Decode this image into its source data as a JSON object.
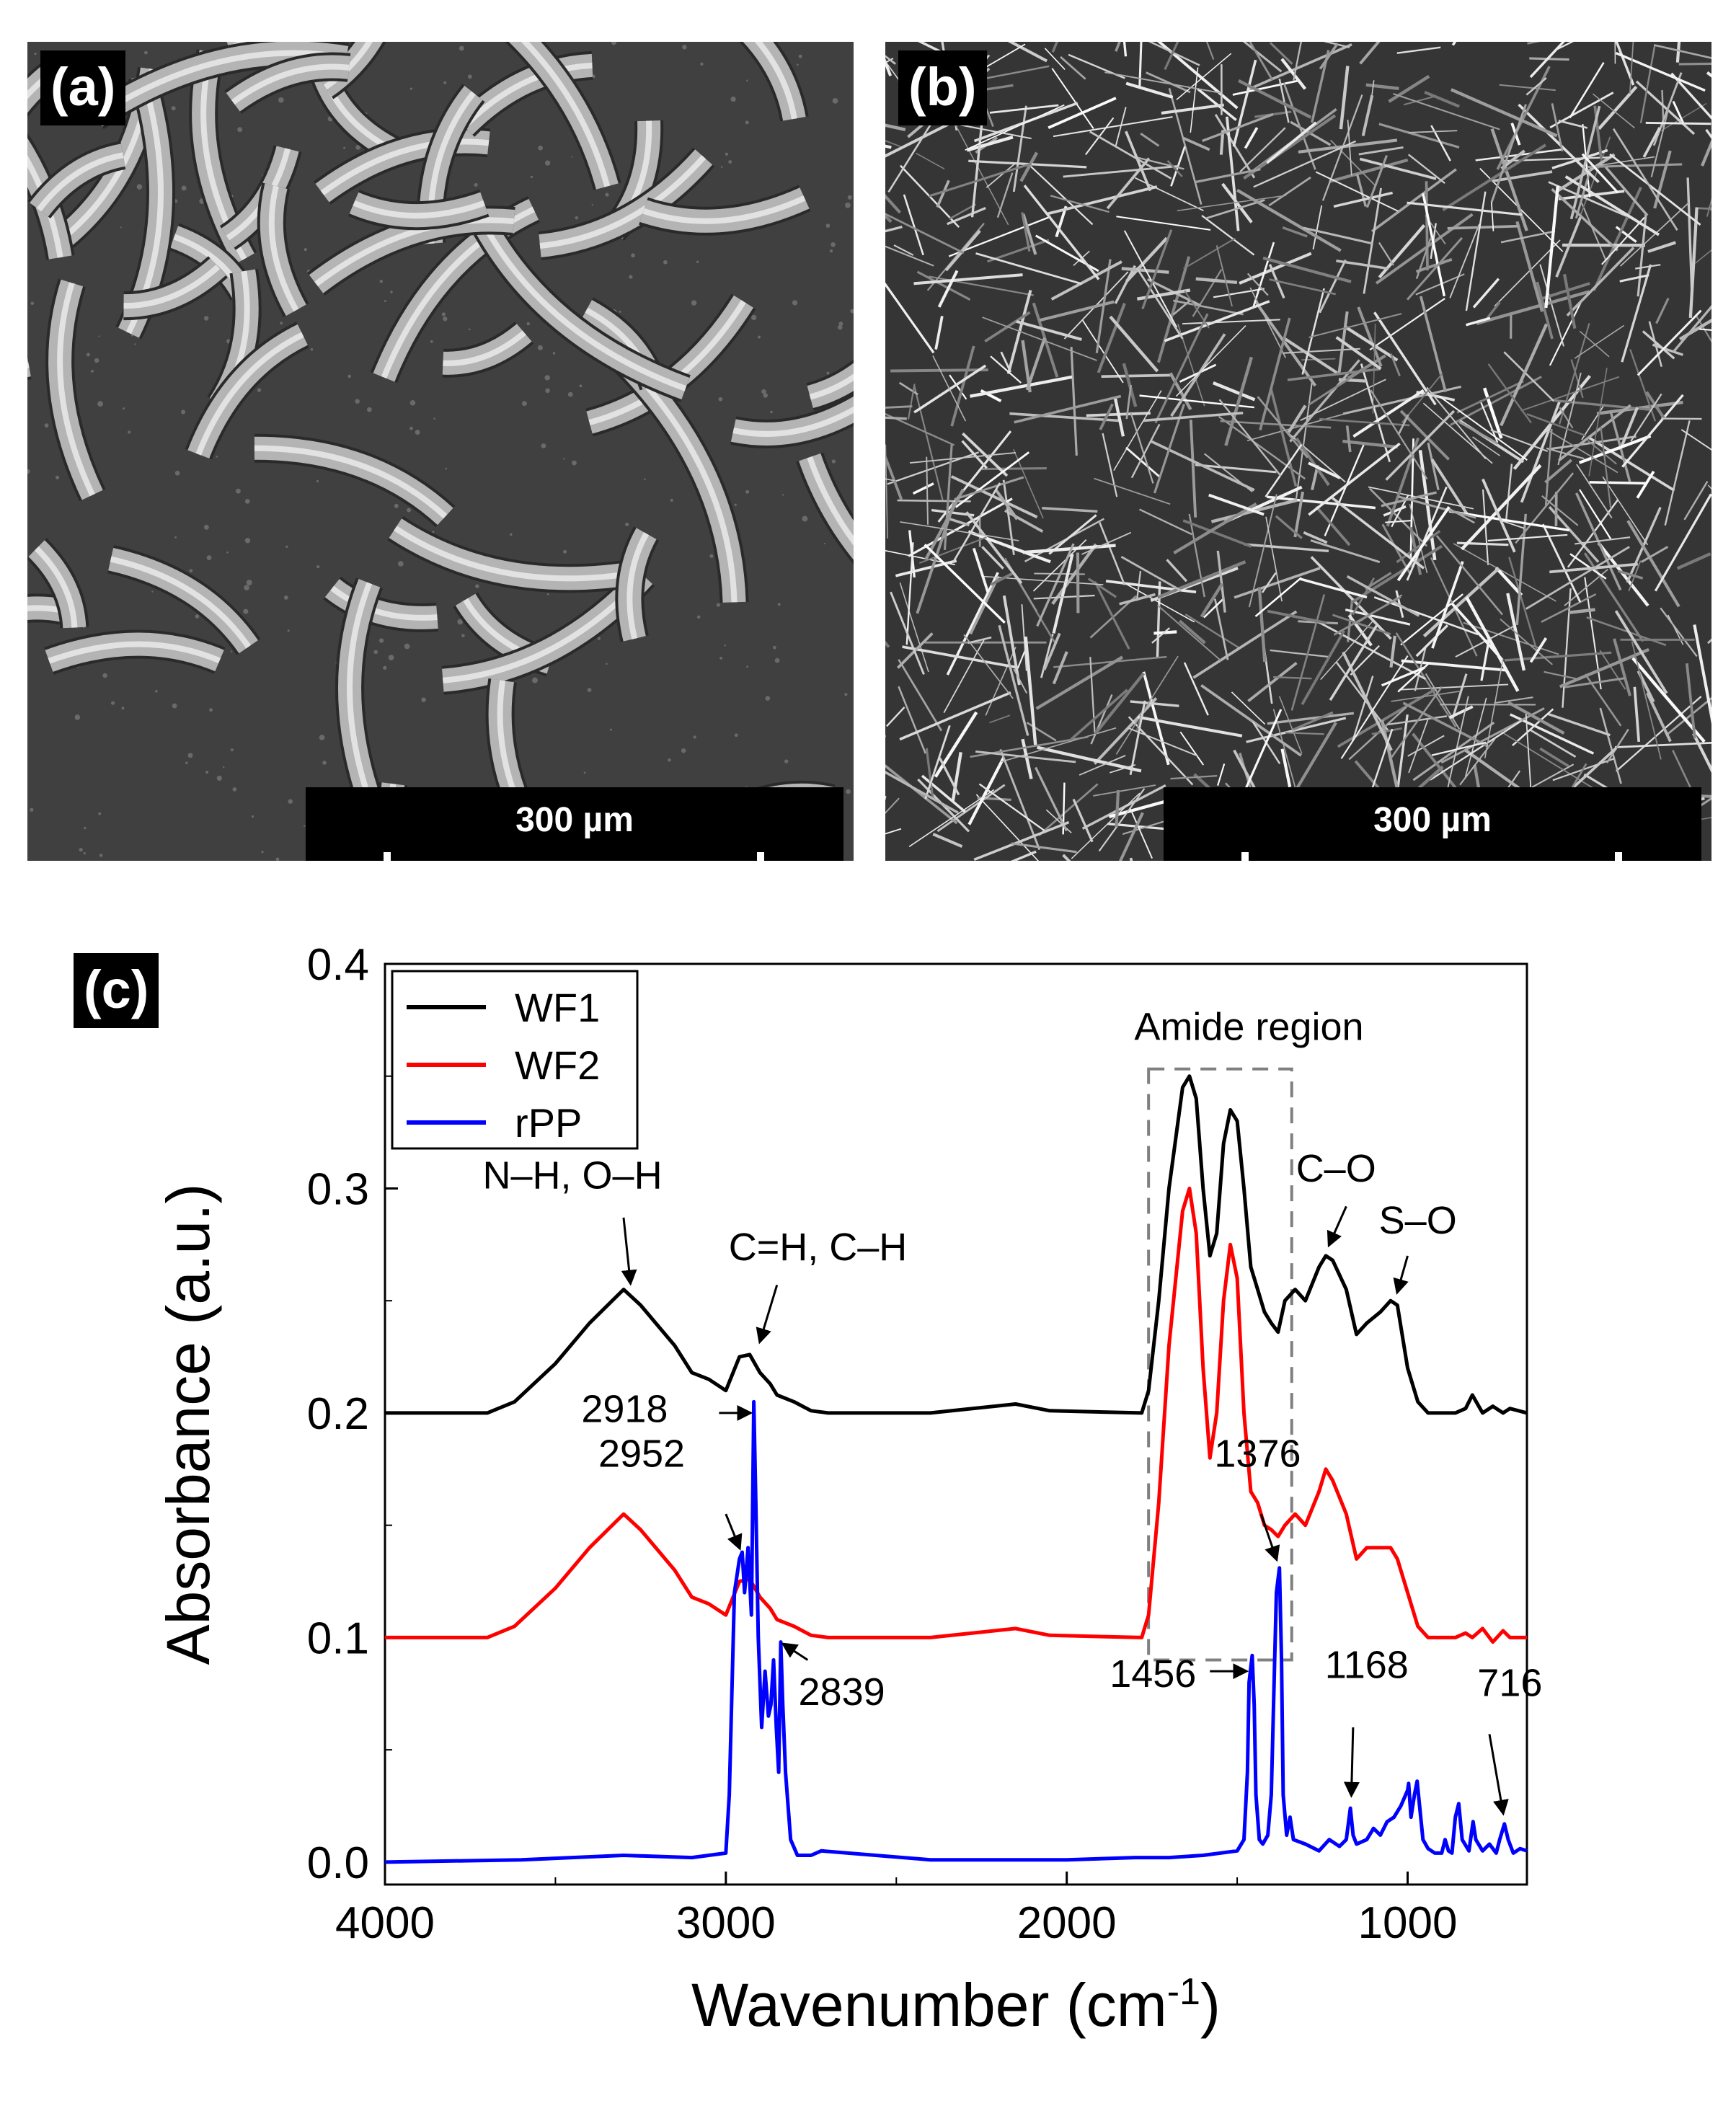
{
  "panels": {
    "a": {
      "label": "(a)",
      "scale_label": "300 µm"
    },
    "b": {
      "label": "(b)",
      "scale_label": "300 µm"
    },
    "c": {
      "label": "(c)"
    }
  },
  "chart_data": {
    "type": "line",
    "xlabel": "Wavenumber (cm",
    "xlabel_sup": "-1",
    "xlabel_close": ")",
    "ylabel": "Absorbance (a.u.)",
    "xlim": [
      4000,
      650
    ],
    "ylim": [
      -0.01,
      0.4
    ],
    "x_ticks": [
      4000,
      3000,
      2000,
      1000
    ],
    "y_ticks": [
      0.0,
      0.1,
      0.2,
      0.3,
      0.4
    ],
    "y_tick_labels": [
      "0.0",
      "0.1",
      "0.2",
      "0.3",
      "0.4"
    ],
    "legend_position": "top-left",
    "series": [
      {
        "name": "WF1",
        "color": "#000000",
        "x": [
          4000,
          3700,
          3620,
          3500,
          3400,
          3300,
          3250,
          3150,
          3100,
          3050,
          3000,
          2960,
          2930,
          2900,
          2870,
          2850,
          2800,
          2750,
          2700,
          2400,
          2150,
          2050,
          1780,
          1760,
          1730,
          1700,
          1660,
          1640,
          1620,
          1600,
          1580,
          1560,
          1540,
          1520,
          1500,
          1480,
          1460,
          1440,
          1420,
          1400,
          1380,
          1360,
          1330,
          1300,
          1260,
          1240,
          1220,
          1180,
          1150,
          1120,
          1080,
          1050,
          1030,
          1000,
          970,
          940,
          900,
          860,
          830,
          810,
          780,
          750,
          720,
          700,
          650
        ],
        "y": [
          0.2,
          0.2,
          0.205,
          0.222,
          0.24,
          0.255,
          0.248,
          0.23,
          0.218,
          0.215,
          0.21,
          0.225,
          0.226,
          0.218,
          0.213,
          0.208,
          0.205,
          0.201,
          0.2,
          0.2,
          0.204,
          0.201,
          0.2,
          0.21,
          0.25,
          0.3,
          0.345,
          0.35,
          0.34,
          0.3,
          0.27,
          0.28,
          0.32,
          0.335,
          0.33,
          0.3,
          0.265,
          0.255,
          0.245,
          0.24,
          0.236,
          0.25,
          0.255,
          0.25,
          0.265,
          0.27,
          0.268,
          0.255,
          0.235,
          0.24,
          0.245,
          0.25,
          0.248,
          0.22,
          0.205,
          0.2,
          0.2,
          0.2,
          0.202,
          0.208,
          0.2,
          0.203,
          0.2,
          0.202,
          0.2
        ]
      },
      {
        "name": "WF2",
        "color": "#ff0000",
        "x": [
          4000,
          3700,
          3620,
          3500,
          3400,
          3300,
          3250,
          3150,
          3100,
          3050,
          3000,
          2960,
          2930,
          2900,
          2870,
          2850,
          2800,
          2750,
          2700,
          2400,
          2150,
          2050,
          1780,
          1760,
          1730,
          1700,
          1660,
          1640,
          1620,
          1600,
          1580,
          1560,
          1540,
          1520,
          1500,
          1480,
          1460,
          1440,
          1420,
          1400,
          1380,
          1360,
          1330,
          1300,
          1260,
          1240,
          1220,
          1180,
          1150,
          1120,
          1080,
          1050,
          1030,
          1000,
          970,
          940,
          900,
          860,
          830,
          810,
          780,
          750,
          720,
          700,
          650
        ],
        "y": [
          0.1,
          0.1,
          0.105,
          0.122,
          0.14,
          0.155,
          0.148,
          0.13,
          0.118,
          0.115,
          0.11,
          0.125,
          0.126,
          0.118,
          0.113,
          0.108,
          0.105,
          0.101,
          0.1,
          0.1,
          0.104,
          0.101,
          0.1,
          0.11,
          0.16,
          0.23,
          0.29,
          0.3,
          0.28,
          0.22,
          0.18,
          0.2,
          0.25,
          0.275,
          0.26,
          0.2,
          0.165,
          0.16,
          0.15,
          0.148,
          0.145,
          0.15,
          0.155,
          0.15,
          0.165,
          0.175,
          0.17,
          0.155,
          0.135,
          0.14,
          0.14,
          0.14,
          0.135,
          0.12,
          0.105,
          0.1,
          0.1,
          0.1,
          0.102,
          0.1,
          0.104,
          0.098,
          0.103,
          0.1,
          0.1
        ]
      },
      {
        "name": "rPP",
        "color": "#0000ff",
        "x": [
          4000,
          3600,
          3300,
          3100,
          3000,
          2990,
          2975,
          2960,
          2952,
          2945,
          2935,
          2925,
          2918,
          2912,
          2905,
          2895,
          2885,
          2875,
          2868,
          2860,
          2852,
          2845,
          2839,
          2833,
          2825,
          2810,
          2790,
          2750,
          2720,
          2400,
          2000,
          1800,
          1700,
          1600,
          1500,
          1480,
          1470,
          1465,
          1456,
          1450,
          1445,
          1435,
          1425,
          1410,
          1400,
          1390,
          1385,
          1376,
          1370,
          1365,
          1355,
          1345,
          1335,
          1300,
          1260,
          1230,
          1200,
          1180,
          1168,
          1160,
          1150,
          1120,
          1100,
          1080,
          1060,
          1040,
          1020,
          1000,
          997,
          990,
          980,
          972,
          965,
          955,
          940,
          920,
          900,
          890,
          880,
          870,
          860,
          850,
          840,
          820,
          808,
          800,
          780,
          760,
          740,
          730,
          716,
          705,
          690,
          670,
          650
        ],
        "y": [
          0.0,
          0.001,
          0.003,
          0.002,
          0.004,
          0.03,
          0.12,
          0.135,
          0.138,
          0.12,
          0.14,
          0.11,
          0.205,
          0.16,
          0.1,
          0.06,
          0.085,
          0.065,
          0.07,
          0.09,
          0.06,
          0.04,
          0.098,
          0.07,
          0.04,
          0.01,
          0.003,
          0.003,
          0.005,
          0.001,
          0.001,
          0.002,
          0.002,
          0.003,
          0.005,
          0.01,
          0.04,
          0.08,
          0.092,
          0.07,
          0.03,
          0.01,
          0.008,
          0.012,
          0.03,
          0.09,
          0.12,
          0.131,
          0.09,
          0.03,
          0.012,
          0.02,
          0.01,
          0.008,
          0.005,
          0.01,
          0.007,
          0.01,
          0.024,
          0.012,
          0.008,
          0.01,
          0.015,
          0.012,
          0.018,
          0.02,
          0.025,
          0.032,
          0.035,
          0.02,
          0.03,
          0.036,
          0.025,
          0.01,
          0.006,
          0.004,
          0.004,
          0.01,
          0.005,
          0.004,
          0.02,
          0.026,
          0.01,
          0.005,
          0.018,
          0.01,
          0.005,
          0.008,
          0.004,
          0.01,
          0.017,
          0.01,
          0.004,
          0.006,
          0.005
        ]
      }
    ],
    "highlight_box": {
      "label": "Amide region",
      "x": [
        1760,
        1340
      ],
      "y": [
        0.09,
        0.35
      ]
    },
    "annotations": [
      {
        "text": "N–H, O–H",
        "x": 3300,
        "y": 0.26
      },
      {
        "text": "C=H, C–H",
        "x": 2900,
        "y": 0.23
      },
      {
        "text": "C–O",
        "x": 1230,
        "y": 0.275
      },
      {
        "text": "S–O",
        "x": 1030,
        "y": 0.255
      },
      {
        "text": "2918",
        "x": 2918,
        "y": 0.2
      },
      {
        "text": "2952",
        "x": 2952,
        "y": 0.14
      },
      {
        "text": "2839",
        "x": 2839,
        "y": 0.1
      },
      {
        "text": "1456",
        "x": 1456,
        "y": 0.092
      },
      {
        "text": "1376",
        "x": 1376,
        "y": 0.131
      },
      {
        "text": "1168",
        "x": 1168,
        "y": 0.024
      },
      {
        "text": "716",
        "x": 716,
        "y": 0.017
      }
    ]
  }
}
